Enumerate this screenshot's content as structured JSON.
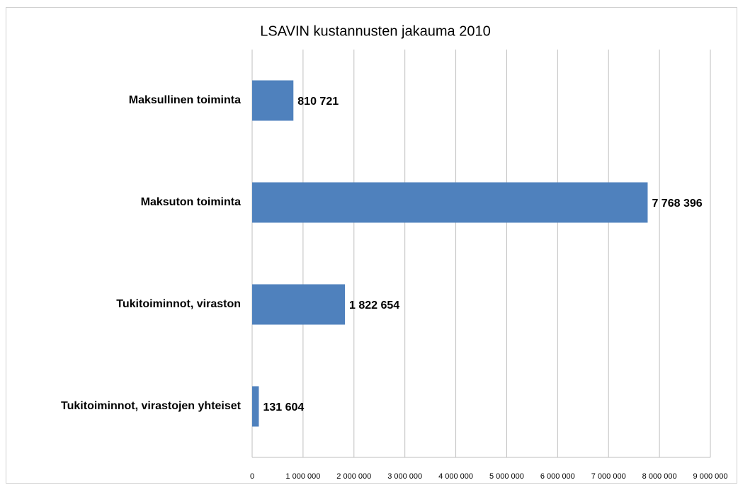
{
  "chart_data": {
    "type": "bar",
    "orientation": "horizontal",
    "title": "LSAVIN kustannusten jakauma 2010",
    "categories": [
      "Maksullinen toiminta",
      "Maksuton toiminta",
      "Tukitoiminnot, viraston",
      "Tukitoiminnot, virastojen yhteiset"
    ],
    "values": [
      810721,
      7768396,
      1822654,
      131604
    ],
    "value_labels": [
      "810 721",
      "7 768 396",
      "1 822 654",
      "131 604"
    ],
    "color": "#4f81bd",
    "xlim": [
      0,
      9000000
    ],
    "xticks": [
      0,
      {
        "value": 1000000,
        "label": "1 000 000"
      },
      {
        "value": 2000000,
        "label": "2 000 000"
      },
      {
        "value": 3000000,
        "label": "3 000 000"
      },
      {
        "value": 4000000,
        "label": "4 000 000"
      },
      {
        "value": 5000000,
        "label": "5 000 000"
      },
      {
        "value": 6000000,
        "label": "6 000 000"
      },
      {
        "value": 7000000,
        "label": "7 000 000"
      },
      {
        "value": 8000000,
        "label": "8 000 000"
      },
      {
        "value": 9000000,
        "label": "9 000 000"
      }
    ],
    "grid": true
  }
}
